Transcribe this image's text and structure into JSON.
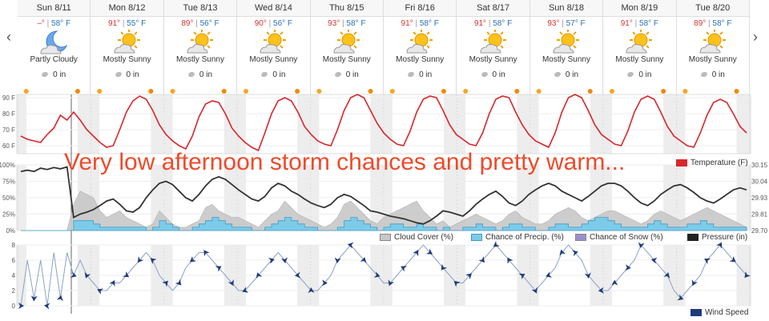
{
  "nav": {
    "prev": "‹",
    "next": "›"
  },
  "days": [
    {
      "label": "Sun 8/11",
      "hi": "–°",
      "lo": "58° F",
      "cond": "Partly Cloudy",
      "icon": "moon-cloud-icon",
      "precip": "0 in"
    },
    {
      "label": "Mon 8/12",
      "hi": "91°",
      "lo": "55° F",
      "cond": "Mostly Sunny",
      "icon": "sun-cloud-icon",
      "precip": "0 in"
    },
    {
      "label": "Tue 8/13",
      "hi": "89°",
      "lo": "56° F",
      "cond": "Mostly Sunny",
      "icon": "sun-cloud-icon",
      "precip": "0 in"
    },
    {
      "label": "Wed 8/14",
      "hi": "90°",
      "lo": "56° F",
      "cond": "Mostly Sunny",
      "icon": "sun-cloud-icon",
      "precip": "0 in"
    },
    {
      "label": "Thu 8/15",
      "hi": "93°",
      "lo": "58° F",
      "cond": "Mostly Sunny",
      "icon": "sun-cloud-icon",
      "precip": "0 in"
    },
    {
      "label": "Fri 8/16",
      "hi": "91°",
      "lo": "58° F",
      "cond": "Mostly Sunny",
      "icon": "sun-cloud-icon",
      "precip": "0 in"
    },
    {
      "label": "Sat 8/17",
      "hi": "91°",
      "lo": "58° F",
      "cond": "Mostly Sunny",
      "icon": "sun-cloud-icon",
      "precip": "0 in"
    },
    {
      "label": "Sun 8/18",
      "hi": "93°",
      "lo": "57° F",
      "cond": "Mostly Sunny",
      "icon": "sun-cloud-icon",
      "precip": "0 in"
    },
    {
      "label": "Mon 8/19",
      "hi": "91°",
      "lo": "58° F",
      "cond": "Mostly Sunny",
      "icon": "sun-cloud-icon",
      "precip": "0 in"
    },
    {
      "label": "Tue 8/20",
      "hi": "89°",
      "lo": "58° F",
      "cond": "Mostly Sunny",
      "icon": "sun-cloud-icon",
      "precip": "0 in"
    }
  ],
  "overlay_text": "Very low afternoon storm chances and pretty warm...",
  "colors": {
    "temp": "#d9262c",
    "cloud": "#c8c8c8",
    "precip": "#7ccbe8",
    "snow": "#9b8fc9",
    "pressure": "#333333",
    "wind": "#1f3b7a"
  },
  "chart_data": [
    {
      "type": "line",
      "name": "temperature",
      "ylim": [
        55,
        92
      ],
      "yticks": [
        "90 F",
        "80 F",
        "70 F",
        "60 F"
      ],
      "ytick_values": [
        90,
        80,
        70,
        60
      ],
      "legend": [
        "Temperature (F)"
      ],
      "series": [
        {
          "name": "Temperature (F)",
          "values": [
            66,
            64,
            63,
            62,
            67,
            71,
            79,
            76,
            81,
            76,
            70,
            66,
            62,
            59,
            60,
            70,
            81,
            88,
            91,
            89,
            82,
            73,
            67,
            63,
            60,
            58,
            66,
            78,
            86,
            88,
            87,
            80,
            71,
            66,
            62,
            59,
            57,
            68,
            80,
            88,
            90,
            88,
            81,
            72,
            67,
            63,
            61,
            60,
            70,
            82,
            90,
            92,
            90,
            82,
            74,
            68,
            64,
            61,
            60,
            69,
            81,
            89,
            91,
            90,
            82,
            73,
            67,
            64,
            61,
            60,
            68,
            80,
            89,
            91,
            90,
            81,
            73,
            67,
            63,
            61,
            59,
            68,
            81,
            90,
            92,
            90,
            82,
            73,
            67,
            64,
            61,
            60,
            69,
            81,
            89,
            91,
            89,
            81,
            72,
            66,
            63,
            60,
            59,
            68,
            79,
            87,
            89,
            87,
            80,
            72,
            68
          ]
        }
      ]
    },
    {
      "type": "area",
      "name": "cloud-precip-pressure",
      "ylim": [
        0,
        100
      ],
      "yticks": [
        "100%",
        "75%",
        "50%",
        "25%",
        "0%"
      ],
      "ytick_values": [
        100,
        75,
        50,
        25,
        0
      ],
      "yticks_right": [
        "30.15",
        "30.04",
        "29.93",
        "29.81",
        "29.70"
      ],
      "legend": [
        "Cloud Cover (%)",
        "Chance of Precip. (%)",
        "Chance of Snow (%)",
        "Pressure (in)"
      ],
      "series": [
        {
          "name": "Cloud Cover (%)",
          "values": [
            0,
            0,
            0,
            0,
            0,
            0,
            0,
            0,
            40,
            60,
            55,
            50,
            30,
            20,
            25,
            30,
            20,
            15,
            10,
            5,
            10,
            30,
            20,
            10,
            5,
            5,
            10,
            15,
            35,
            40,
            30,
            25,
            20,
            20,
            15,
            10,
            5,
            15,
            25,
            30,
            45,
            35,
            25,
            20,
            15,
            10,
            5,
            10,
            20,
            40,
            45,
            35,
            25,
            15,
            10,
            20,
            25,
            30,
            35,
            40,
            45,
            30,
            20,
            10,
            15,
            5,
            10,
            15,
            20,
            25,
            20,
            15,
            10,
            15,
            25,
            30,
            20,
            15,
            10,
            10,
            15,
            25,
            30,
            35,
            30,
            20,
            15,
            20,
            25,
            30,
            30,
            25,
            20,
            15,
            10,
            15,
            25,
            30,
            25,
            20,
            15,
            20,
            25,
            30,
            35,
            30,
            25,
            20,
            15,
            10,
            5
          ]
        },
        {
          "name": "Chance of Precip. (%)",
          "values": [
            0,
            0,
            0,
            0,
            0,
            0,
            0,
            0,
            15,
            15,
            15,
            10,
            5,
            5,
            5,
            5,
            5,
            5,
            5,
            0,
            5,
            15,
            10,
            5,
            0,
            0,
            5,
            10,
            15,
            20,
            15,
            10,
            5,
            5,
            5,
            0,
            0,
            5,
            10,
            15,
            20,
            15,
            10,
            5,
            5,
            0,
            0,
            0,
            5,
            15,
            20,
            15,
            10,
            5,
            0,
            5,
            10,
            10,
            5,
            5,
            10,
            5,
            5,
            0,
            5,
            0,
            0,
            5,
            5,
            10,
            5,
            5,
            0,
            5,
            10,
            10,
            5,
            5,
            0,
            0,
            5,
            10,
            10,
            5,
            5,
            10,
            15,
            20,
            20,
            15,
            10,
            5,
            5,
            5,
            5,
            10,
            15,
            10,
            5,
            5,
            5,
            10,
            10,
            15,
            10,
            5,
            5,
            5,
            5,
            5,
            5
          ]
        },
        {
          "name": "Pressure (in)",
          "values": [
            90,
            92,
            90,
            95,
            93,
            96,
            94,
            97,
            20,
            25,
            28,
            32,
            38,
            45,
            48,
            40,
            30,
            28,
            35,
            50,
            62,
            72,
            75,
            70,
            60,
            50,
            45,
            55,
            68,
            78,
            82,
            78,
            70,
            62,
            55,
            48,
            45,
            52,
            65,
            72,
            68,
            60,
            55,
            48,
            42,
            38,
            35,
            40,
            50,
            55,
            52,
            45,
            38,
            30,
            28,
            25,
            22,
            20,
            18,
            15,
            12,
            10,
            15,
            22,
            30,
            28,
            25,
            22,
            30,
            40,
            48,
            55,
            60,
            52,
            42,
            38,
            45,
            55,
            62,
            68,
            72,
            68,
            60,
            55,
            50,
            45,
            52,
            60,
            68,
            72,
            72,
            68,
            60,
            50,
            42,
            38,
            45,
            55,
            62,
            68,
            70,
            65,
            58,
            50,
            45,
            42,
            48,
            55,
            62,
            65,
            62
          ]
        }
      ]
    },
    {
      "type": "line",
      "name": "wind",
      "ylim": [
        0,
        8
      ],
      "yticks": [
        "8",
        "6",
        "4",
        "2",
        "0"
      ],
      "ytick_values": [
        8,
        6,
        4,
        2,
        0
      ],
      "legend": [
        "Wind Speed"
      ],
      "series": [
        {
          "name": "Wind Speed",
          "values": [
            0,
            6,
            1,
            6,
            0,
            7,
            1,
            7,
            4,
            6,
            4,
            3,
            2,
            2,
            3,
            3,
            4,
            5,
            6,
            7,
            6,
            4,
            3,
            2,
            3,
            5,
            6,
            7,
            7,
            6,
            5,
            4,
            3,
            2,
            2,
            3,
            4,
            5,
            6,
            7,
            6,
            5,
            4,
            3,
            2,
            2,
            3,
            4,
            6,
            7,
            8,
            7,
            6,
            5,
            4,
            3,
            3,
            4,
            5,
            6,
            7,
            8,
            7,
            6,
            5,
            4,
            3,
            3,
            4,
            5,
            6,
            7,
            8,
            7,
            6,
            5,
            4,
            3,
            2,
            3,
            4,
            5,
            7,
            8,
            7,
            6,
            4,
            3,
            2,
            2,
            3,
            4,
            5,
            6,
            8,
            7,
            6,
            5,
            4,
            2,
            1,
            2,
            3,
            4,
            6,
            7,
            8,
            7,
            6,
            5,
            4
          ]
        }
      ]
    }
  ]
}
